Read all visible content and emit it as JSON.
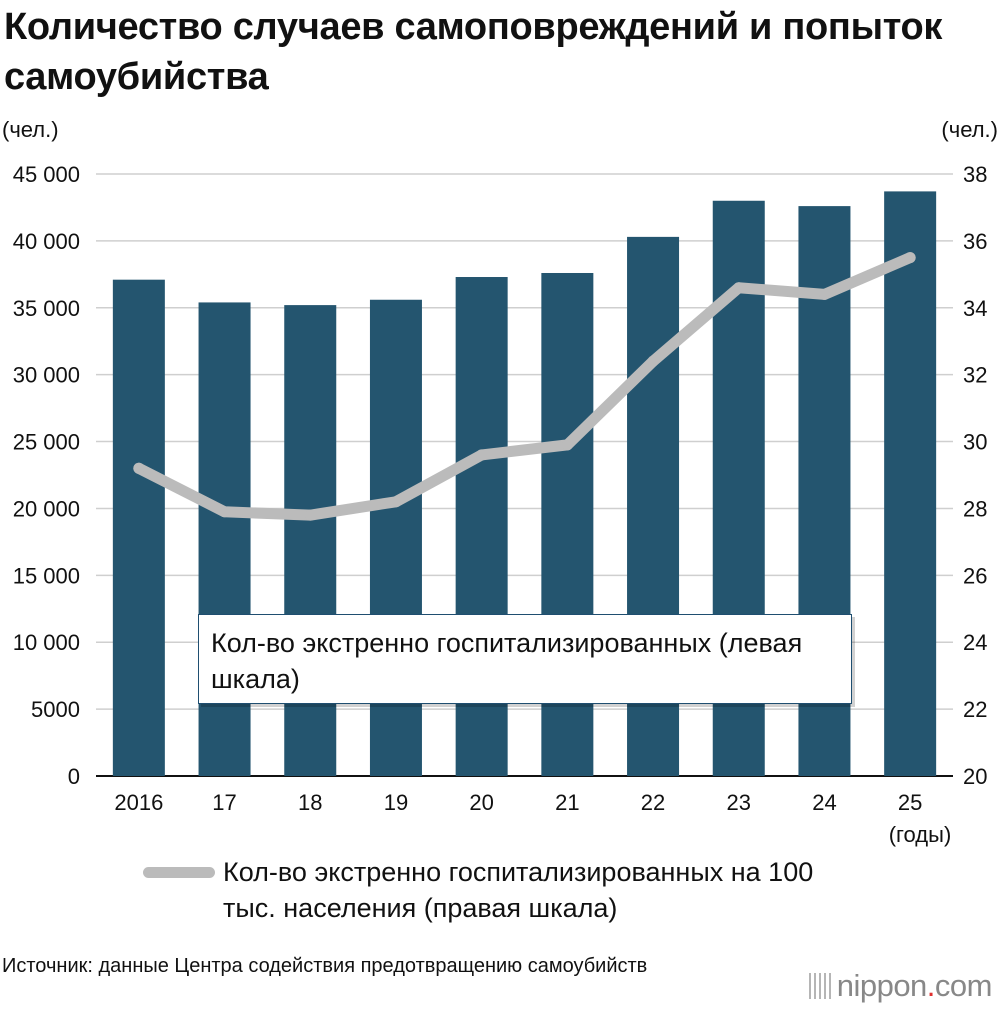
{
  "title": "Количество случаев самоповреждений и попыток самоубийства",
  "left_unit": "(чел.)",
  "right_unit": "(чел.)",
  "inner_legend": "Кол-во экстренно госпитализированных (левая шкала)",
  "line_legend": "Кол-во экстренно госпитализированных на 100 тыс. населения (правая шкала)",
  "x_unit": "(годы)",
  "source": "Источник: данные Центра содействия предотвращению самоубийств",
  "logo": {
    "brand": "nippon",
    "dot": ".",
    "suffix": "com"
  },
  "colors": {
    "bars": "#24556f",
    "line": "#bbbbbb",
    "grid": "#cfcfcf",
    "logo_dot": "#e0302f"
  },
  "chart_data": {
    "type": "bar",
    "categories": [
      "2016",
      "17",
      "18",
      "19",
      "20",
      "21",
      "22",
      "23",
      "24",
      "25"
    ],
    "series": [
      {
        "name": "Кол-во экстренно госпитализированных (левая шкала)",
        "type": "bar",
        "axis": "left",
        "values": [
          37100,
          35400,
          35200,
          35600,
          37300,
          37600,
          40300,
          43000,
          42600,
          43700
        ]
      },
      {
        "name": "Кол-во экстренно госпитализированных на 100 тыс. населения (правая шкала)",
        "type": "line",
        "axis": "right",
        "values": [
          29.2,
          27.9,
          27.8,
          28.2,
          29.6,
          29.9,
          32.4,
          34.6,
          34.4,
          35.5
        ]
      }
    ],
    "left_axis": {
      "min": 0,
      "max": 45000,
      "step": 5000,
      "tick_labels": [
        "0",
        "5000",
        "10 000",
        "15 000",
        "20 000",
        "25 000",
        "30 000",
        "35 000",
        "40 000",
        "45 000"
      ]
    },
    "right_axis": {
      "min": 20,
      "max": 38,
      "step": 2,
      "tick_labels": [
        "20",
        "22",
        "24",
        "26",
        "28",
        "30",
        "32",
        "34",
        "36",
        "38"
      ]
    },
    "grid": true,
    "legend_placement": "bottom"
  }
}
